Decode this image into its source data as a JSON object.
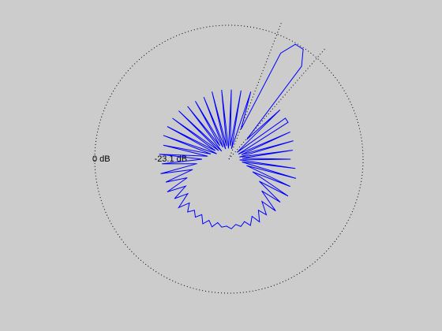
{
  "chart_data": {
    "type": "polar",
    "theta": [
      0,
      4,
      8,
      12,
      16,
      20,
      24,
      28,
      32,
      36,
      40,
      44,
      48,
      52,
      56,
      60,
      64,
      68,
      72,
      76,
      80,
      84,
      88,
      92,
      96,
      100,
      104,
      108,
      112,
      116,
      120,
      124,
      128,
      132,
      136,
      140,
      144,
      148,
      152,
      156,
      160,
      164,
      168,
      172,
      176,
      180,
      184,
      188,
      192,
      196,
      200,
      204,
      208,
      212,
      216,
      220,
      224,
      228,
      232,
      236,
      240,
      244,
      248,
      252,
      256,
      260,
      264,
      268,
      272,
      276,
      280,
      284,
      288,
      292,
      296,
      300,
      304,
      308,
      312,
      316,
      320,
      324,
      328,
      332,
      336,
      340,
      344,
      348,
      352,
      356
    ],
    "series": [
      {
        "color": "#0000ff",
        "values": [
          -27,
          -45,
          -26,
          -46,
          -25,
          -45,
          -25,
          -46,
          -24,
          -24,
          -46,
          -23.5,
          -40,
          -6,
          -0.5,
          -0.5,
          -6,
          -38,
          -23.5,
          -46,
          -24,
          -45,
          -24,
          -46,
          -24,
          -45,
          -24,
          -46,
          -25,
          -45,
          -25,
          -44,
          -25,
          -46,
          -24,
          -45,
          -24,
          -44,
          -24,
          -45,
          -24,
          -43,
          -25,
          -42,
          -24,
          -40,
          -25,
          -38,
          -24,
          -36,
          -25,
          -33,
          -24,
          -31,
          -25,
          -30,
          -24,
          -28,
          -25,
          -27,
          -25,
          -27,
          -24,
          -26,
          -24,
          -26,
          -24.5,
          -25,
          -24,
          -25.5,
          -24.5,
          -26,
          -24,
          -27,
          -24,
          -28,
          -25,
          -30,
          -24,
          -33,
          -25,
          -36,
          -24,
          -40,
          -25,
          -43,
          -24,
          -45,
          -25,
          -46
        ]
      }
    ],
    "rlim": [
      -50,
      0
    ],
    "rticks": [
      {
        "value": 0,
        "label": "0 dB"
      },
      {
        "value": -23.1,
        "label": "-23.1 dB"
      }
    ],
    "beam_lines": [
      49,
      69
    ],
    "ring_color": "#000000"
  }
}
